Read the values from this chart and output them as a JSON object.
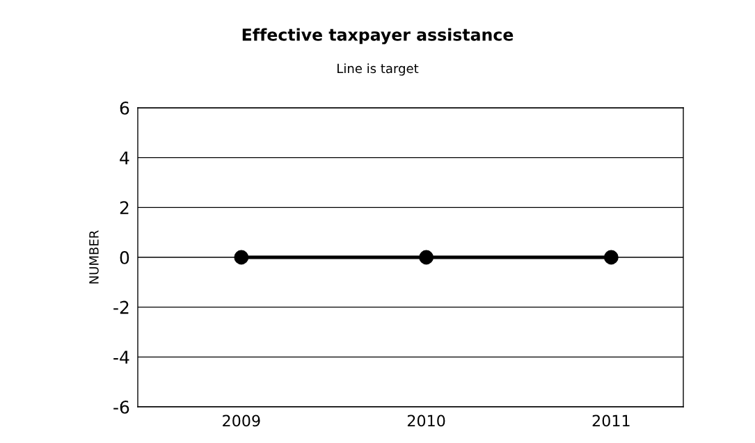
{
  "chart_data": {
    "type": "line",
    "title": "Effective taxpayer assistance",
    "subtitle": "Line is target",
    "ylabel": "NUMBER",
    "categories": [
      "2009",
      "2010",
      "2011"
    ],
    "series": [
      {
        "color": "#000000",
        "values": [
          0,
          0,
          0
        ]
      }
    ],
    "ylim": [
      -6,
      6
    ],
    "yticks": [
      -6,
      -4,
      -2,
      0,
      2,
      4,
      6
    ],
    "grid": "y",
    "marker": "circle",
    "line_style": "solid"
  }
}
